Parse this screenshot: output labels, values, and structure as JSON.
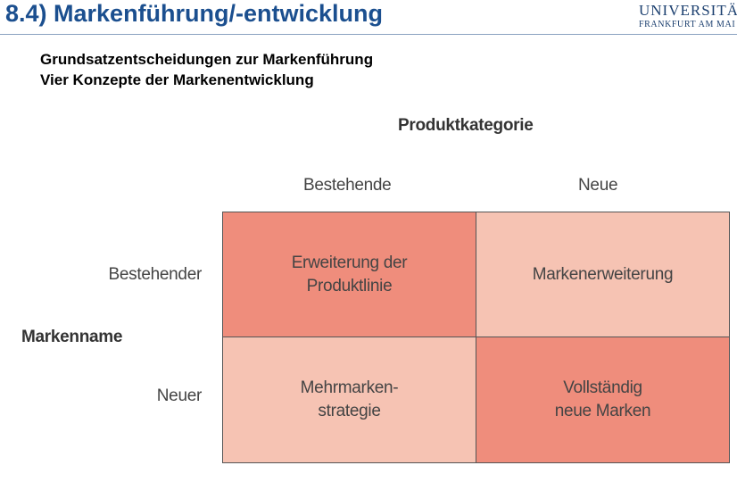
{
  "header": {
    "title": "8.4) Markenführung/-entwicklung",
    "logo": [
      "UNIVERSITÄ",
      "FRANKFURT AM MAI"
    ]
  },
  "subtitle": [
    "Grundsatzentscheidungen zur Markenführung",
    "Vier Konzepte der Markenentwicklung"
  ],
  "matrix": {
    "column_axis": "Produktkategorie",
    "columns": [
      "Bestehende",
      "Neue"
    ],
    "row_axis": "Markenname",
    "rows": [
      "Bestehender",
      "Neuer"
    ],
    "cells": [
      [
        [
          "Erweiterung der",
          "Produktlinie"
        ],
        [
          "Markenerweiterung"
        ]
      ],
      [
        [
          "Mehrmarken-",
          "strategie"
        ],
        [
          "Vollständig",
          "neue Marken"
        ]
      ]
    ]
  }
}
